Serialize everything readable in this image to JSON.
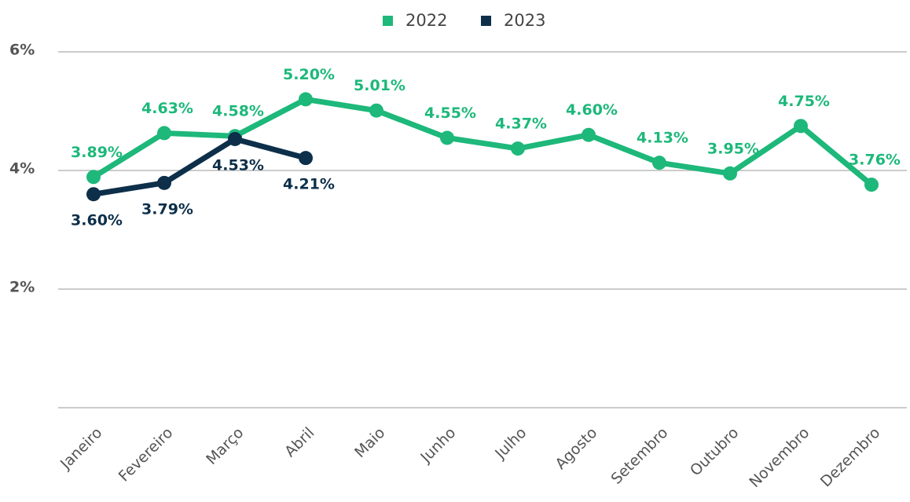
{
  "chart_data": {
    "type": "line",
    "categories": [
      "Janeiro",
      "Fevereiro",
      "Março",
      "Abril",
      "Maio",
      "Junho",
      "Julho",
      "Agosto",
      "Setembro",
      "Outubro",
      "Novembro",
      "Dezembro"
    ],
    "series": [
      {
        "name": "2022",
        "color": "#1db87a",
        "values": [
          3.89,
          4.63,
          4.58,
          5.2,
          5.01,
          4.55,
          4.37,
          4.6,
          4.13,
          3.95,
          4.75,
          3.76
        ],
        "value_labels": [
          "3.89%",
          "4.63%",
          "4.58%",
          "5.20%",
          "5.01%",
          "4.55%",
          "4.37%",
          "4.60%",
          "4.13%",
          "3.95%",
          "4.75%",
          "3.76%"
        ]
      },
      {
        "name": "2023",
        "color": "#0d2f4a",
        "values": [
          3.6,
          3.79,
          4.53,
          4.21,
          null,
          null,
          null,
          null,
          null,
          null,
          null,
          null
        ],
        "value_labels": [
          "3.60%",
          "3.79%",
          "4.53%",
          "4.21%",
          null,
          null,
          null,
          null,
          null,
          null,
          null,
          null
        ]
      }
    ],
    "ylim": [
      0,
      6
    ],
    "yticks": [
      {
        "value": 2,
        "label": "2%"
      },
      {
        "value": 4,
        "label": "4%"
      },
      {
        "value": 6,
        "label": "6%"
      }
    ],
    "grid": true,
    "legend": "top"
  }
}
